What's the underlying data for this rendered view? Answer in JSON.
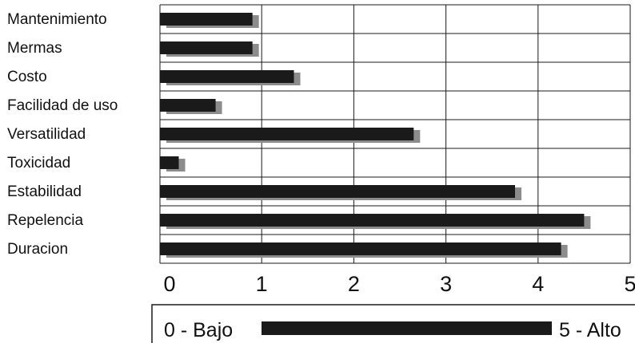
{
  "chart_data": {
    "type": "bar",
    "orientation": "horizontal",
    "categories": [
      "Mantenimiento",
      "Mermas",
      "Costo",
      "Facilidad de uso",
      "Versatilidad",
      "Toxicidad",
      "Estabilidad",
      "Repelencia",
      "Duracion"
    ],
    "values": [
      0.9,
      0.9,
      1.35,
      0.5,
      2.65,
      0.1,
      3.75,
      4.5,
      4.25
    ],
    "xlim": [
      0,
      5
    ],
    "xticks": [
      "0",
      "1",
      "2",
      "3",
      "4",
      "5"
    ],
    "grid": true,
    "shadow": true,
    "colors": {
      "bar": "#1a1a1a",
      "shadow": "#8c8c8c",
      "grid": "#1a1a1a"
    },
    "legend": {
      "low_label": "0 - Bajo",
      "high_label": "5 - Alto"
    }
  }
}
